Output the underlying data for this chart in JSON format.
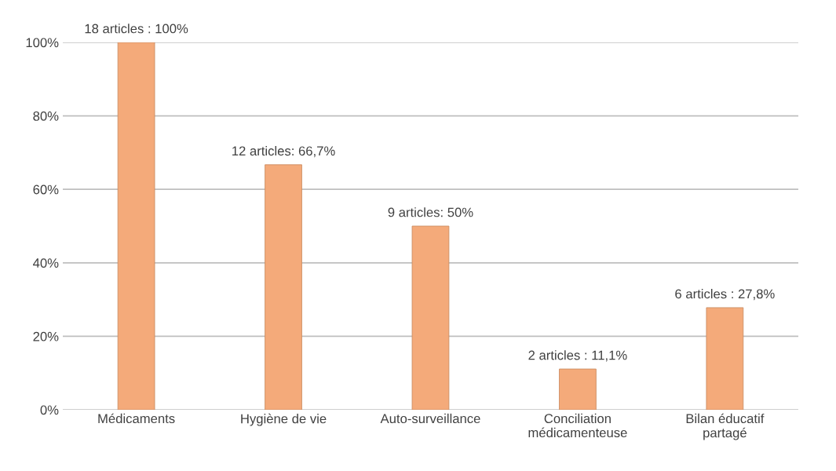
{
  "chart_data": {
    "type": "bar",
    "categories": [
      "Médicaments",
      "Hygiène de vie",
      "Auto-surveillance",
      "Conciliation\nmédicamenteuse",
      "Bilan éducatif\npartagé"
    ],
    "values": [
      100,
      66.7,
      50,
      11.1,
      27.8
    ],
    "value_labels": [
      "18 articles : 100%",
      "12 articles: 66,7%",
      "9 articles: 50%",
      "2 articles : 11,1%",
      "6 articles : 27,8%"
    ],
    "color": "#f4aa7a",
    "ylim": [
      0,
      100
    ],
    "yticks": [
      {
        "value": 0,
        "label": "0%"
      },
      {
        "value": 20,
        "label": "20%"
      },
      {
        "value": 40,
        "label": "40%"
      },
      {
        "value": 60,
        "label": "60%"
      },
      {
        "value": 80,
        "label": "80%"
      },
      {
        "value": 100,
        "label": "100%"
      }
    ],
    "grid": "y"
  }
}
